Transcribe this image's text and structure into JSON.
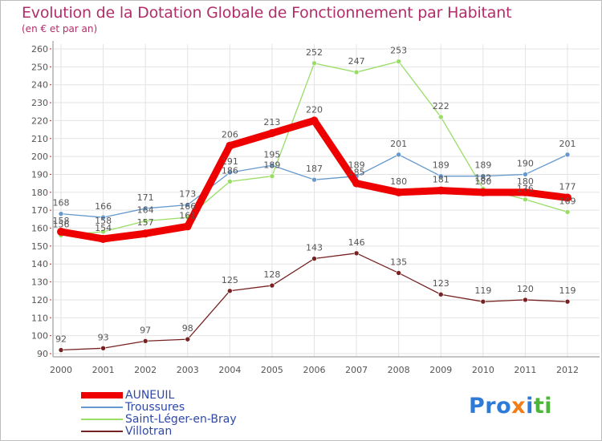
{
  "header": {
    "title": "Evolution de la Dotation Globale de Fonctionnement par Habitant",
    "subtitle": "(en € et par an)"
  },
  "logo": {
    "parts": [
      "Pro",
      "x",
      "i",
      "ti"
    ],
    "colors": [
      "#2d7bd6",
      "#f07d1a",
      "#2d7bd6",
      "#4eb53b"
    ]
  },
  "chart_data": {
    "type": "line",
    "title": "Evolution de la Dotation Globale de Fonctionnement par Habitant",
    "subtitle": "(en € et par an)",
    "xlabel": "",
    "ylabel": "",
    "categories": [
      "2000",
      "2001",
      "2002",
      "2003",
      "2004",
      "2005",
      "2006",
      "2007",
      "2008",
      "2009",
      "2010",
      "2011",
      "2012"
    ],
    "ylim": [
      90,
      260
    ],
    "yticks": [
      90,
      100,
      110,
      120,
      130,
      140,
      150,
      160,
      170,
      180,
      190,
      200,
      210,
      220,
      230,
      240,
      250,
      260
    ],
    "grid": true,
    "legend_position": "bottom-left",
    "series": [
      {
        "name": "AUNEUIL",
        "color": "#ee0000",
        "values": [
          158,
          154,
          157,
          161,
          206,
          213,
          220,
          185,
          180,
          181,
          180,
          180,
          177
        ]
      },
      {
        "name": "Troussures",
        "color": "#6699cc",
        "values": [
          168,
          166,
          171,
          173,
          191,
          195,
          187,
          189,
          201,
          189,
          189,
          190,
          201
        ]
      },
      {
        "name": "Saint-Léger-en-Bray",
        "color": "#99dd66",
        "values": [
          156,
          158,
          164,
          166,
          186,
          189,
          252,
          247,
          253,
          222,
          182,
          176,
          169
        ]
      },
      {
        "name": "Villotran",
        "color": "#772222",
        "values": [
          92,
          93,
          97,
          98,
          125,
          128,
          143,
          146,
          135,
          123,
          119,
          120,
          119
        ]
      }
    ]
  }
}
